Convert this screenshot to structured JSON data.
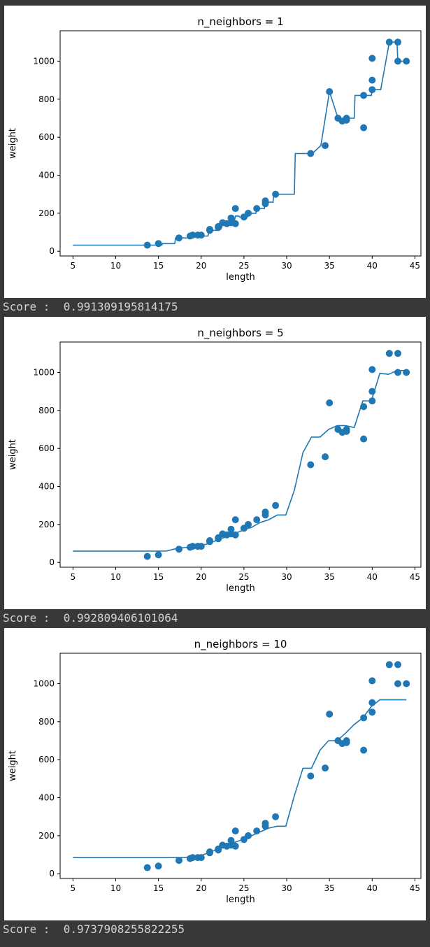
{
  "colors": {
    "page_bg": "#383838",
    "panel_bg": "#ffffff",
    "series": "#1f77b4",
    "axis": "#000000",
    "score_text": "#d4d4d4"
  },
  "scores": [
    {
      "prefix": "Score :",
      "value": "0.991309195814175"
    },
    {
      "prefix": "Score :",
      "value": "0.992809406101064"
    },
    {
      "prefix": "Score :",
      "value": "0.9737908255822255"
    }
  ],
  "chart_data": [
    {
      "type": "scatter",
      "title": "n_neighbors = 1",
      "xlabel": "length",
      "ylabel": "weight",
      "xlim": [
        3.5,
        45.7
      ],
      "ylim": [
        -25,
        1160
      ],
      "xticks": [
        5,
        10,
        15,
        20,
        25,
        30,
        35,
        40,
        45
      ],
      "yticks": [
        0,
        200,
        400,
        600,
        800,
        1000
      ],
      "scatter_points": [
        [
          13.7,
          32
        ],
        [
          15.0,
          40
        ],
        [
          17.4,
          70
        ],
        [
          18.7,
          80
        ],
        [
          19.0,
          85
        ],
        [
          19.6,
          85
        ],
        [
          20.0,
          85
        ],
        [
          21.0,
          110
        ],
        [
          21.0,
          115
        ],
        [
          22.0,
          125
        ],
        [
          22.0,
          130
        ],
        [
          22.5,
          150
        ],
        [
          23.0,
          145
        ],
        [
          23.5,
          150
        ],
        [
          23.5,
          175
        ],
        [
          24.0,
          225
        ],
        [
          24.0,
          145
        ],
        [
          25.0,
          180
        ],
        [
          25.5,
          200
        ],
        [
          26.5,
          225
        ],
        [
          27.5,
          250
        ],
        [
          27.5,
          265
        ],
        [
          28.7,
          300
        ],
        [
          32.8,
          514
        ],
        [
          34.5,
          556
        ],
        [
          35.0,
          840
        ],
        [
          36.0,
          700
        ],
        [
          36.5,
          685
        ],
        [
          37.0,
          700
        ],
        [
          37.0,
          690
        ],
        [
          39.0,
          650
        ],
        [
          39.0,
          820
        ],
        [
          40.0,
          850
        ],
        [
          40.0,
          900
        ],
        [
          40.0,
          1015
        ],
        [
          42.0,
          1100
        ],
        [
          43.0,
          1000
        ],
        [
          43.0,
          1100
        ],
        [
          44.0,
          1000
        ]
      ],
      "line": {
        "x": [
          5,
          13.9,
          14.0,
          15.4,
          15.5,
          16.9,
          17.0,
          18.5,
          18.6,
          20.8,
          20.9,
          21.9,
          22.0,
          22.4,
          22.5,
          22.9,
          23.0,
          23.4,
          23.5,
          23.9,
          24.0,
          24.4,
          24.5,
          25.4,
          25.5,
          26.4,
          26.5,
          27.4,
          27.5,
          28.4,
          28.5,
          30.0,
          30.9,
          31.0,
          32.9,
          33.0,
          34.0,
          35.0,
          36.0,
          36.5,
          37.0,
          37.9,
          38.0,
          38.9,
          39.0,
          39.9,
          40.0,
          41.0,
          42.0,
          42.9,
          43.0,
          44.0
        ],
        "y": [
          32,
          32,
          32,
          32,
          40,
          40,
          70,
          70,
          80,
          80,
          110,
          110,
          125,
          125,
          150,
          150,
          145,
          145,
          162,
          162,
          185,
          185,
          180,
          180,
          200,
          200,
          225,
          225,
          258,
          258,
          300,
          300,
          300,
          514,
          514,
          514,
          556,
          840,
          700,
          685,
          700,
          700,
          820,
          820,
          820,
          820,
          850,
          850,
          1100,
          1100,
          1000,
          1000
        ]
      }
    },
    {
      "type": "scatter",
      "title": "n_neighbors = 5",
      "xlabel": "length",
      "ylabel": "weight",
      "xlim": [
        3.5,
        45.7
      ],
      "ylim": [
        -25,
        1160
      ],
      "xticks": [
        5,
        10,
        15,
        20,
        25,
        30,
        35,
        40,
        45
      ],
      "yticks": [
        0,
        200,
        400,
        600,
        800,
        1000
      ],
      "scatter_points": [
        [
          13.7,
          32
        ],
        [
          15.0,
          40
        ],
        [
          17.4,
          70
        ],
        [
          18.7,
          80
        ],
        [
          19.0,
          85
        ],
        [
          19.6,
          85
        ],
        [
          20.0,
          85
        ],
        [
          21.0,
          110
        ],
        [
          21.0,
          115
        ],
        [
          22.0,
          125
        ],
        [
          22.0,
          130
        ],
        [
          22.5,
          150
        ],
        [
          23.0,
          145
        ],
        [
          23.5,
          150
        ],
        [
          23.5,
          175
        ],
        [
          24.0,
          225
        ],
        [
          24.0,
          145
        ],
        [
          25.0,
          180
        ],
        [
          25.5,
          200
        ],
        [
          26.5,
          225
        ],
        [
          27.5,
          250
        ],
        [
          27.5,
          265
        ],
        [
          28.7,
          300
        ],
        [
          32.8,
          514
        ],
        [
          34.5,
          556
        ],
        [
          35.0,
          840
        ],
        [
          36.0,
          700
        ],
        [
          36.5,
          685
        ],
        [
          37.0,
          700
        ],
        [
          37.0,
          690
        ],
        [
          39.0,
          650
        ],
        [
          39.0,
          820
        ],
        [
          40.0,
          850
        ],
        [
          40.0,
          900
        ],
        [
          40.0,
          1015
        ],
        [
          42.0,
          1100
        ],
        [
          43.0,
          1000
        ],
        [
          43.0,
          1100
        ],
        [
          44.0,
          1000
        ]
      ],
      "line": {
        "x": [
          5,
          15.9,
          16.8,
          17.9,
          18.9,
          19.9,
          20.9,
          21.9,
          22.9,
          23.9,
          24.9,
          25.9,
          26.9,
          27.9,
          28.9,
          29.9,
          30.9,
          31.9,
          32.9,
          33.9,
          34.9,
          35.9,
          36.9,
          37.9,
          38.9,
          39.9,
          40.9,
          41.9,
          42.9,
          43.9,
          44.0
        ],
        "y": [
          60,
          60,
          70,
          78,
          82,
          88,
          100,
          118,
          135,
          152,
          170,
          185,
          210,
          225,
          250,
          250,
          380,
          578,
          660,
          660,
          700,
          720,
          720,
          710,
          850,
          850,
          995,
          990,
          1010,
          1010,
          1010
        ]
      }
    },
    {
      "type": "scatter",
      "title": "n_neighbors = 10",
      "xlabel": "length",
      "ylabel": "weight",
      "xlim": [
        3.5,
        45.7
      ],
      "ylim": [
        -25,
        1160
      ],
      "xticks": [
        5,
        10,
        15,
        20,
        25,
        30,
        35,
        40,
        45
      ],
      "yticks": [
        0,
        200,
        400,
        600,
        800,
        1000
      ],
      "scatter_points": [
        [
          13.7,
          32
        ],
        [
          15.0,
          40
        ],
        [
          17.4,
          70
        ],
        [
          18.7,
          80
        ],
        [
          19.0,
          85
        ],
        [
          19.6,
          85
        ],
        [
          20.0,
          85
        ],
        [
          21.0,
          110
        ],
        [
          21.0,
          115
        ],
        [
          22.0,
          125
        ],
        [
          22.0,
          130
        ],
        [
          22.5,
          150
        ],
        [
          23.0,
          145
        ],
        [
          23.5,
          150
        ],
        [
          23.5,
          175
        ],
        [
          24.0,
          225
        ],
        [
          24.0,
          145
        ],
        [
          25.0,
          180
        ],
        [
          25.5,
          200
        ],
        [
          26.5,
          225
        ],
        [
          27.5,
          250
        ],
        [
          27.5,
          265
        ],
        [
          28.7,
          300
        ],
        [
          32.8,
          514
        ],
        [
          34.5,
          556
        ],
        [
          35.0,
          840
        ],
        [
          36.0,
          700
        ],
        [
          36.5,
          685
        ],
        [
          37.0,
          700
        ],
        [
          37.0,
          690
        ],
        [
          39.0,
          650
        ],
        [
          39.0,
          820
        ],
        [
          40.0,
          850
        ],
        [
          40.0,
          900
        ],
        [
          40.0,
          1015
        ],
        [
          42.0,
          1100
        ],
        [
          43.0,
          1000
        ],
        [
          43.0,
          1100
        ],
        [
          44.0,
          1000
        ]
      ],
      "line": {
        "x": [
          5,
          17.8,
          18.4,
          18.9,
          19.9,
          20.9,
          21.9,
          22.9,
          23.9,
          24.9,
          25.9,
          26.9,
          27.9,
          28.9,
          29.9,
          30.9,
          31.9,
          32.9,
          33.9,
          34.9,
          35.9,
          36.9,
          37.9,
          38.9,
          39.9,
          40.9,
          41.9,
          42.9,
          43.9,
          44.0
        ],
        "y": [
          85,
          85,
          87,
          90,
          95,
          110,
          130,
          148,
          165,
          180,
          200,
          220,
          240,
          250,
          250,
          410,
          555,
          555,
          650,
          700,
          700,
          740,
          785,
          820,
          880,
          915,
          915,
          915,
          915,
          915
        ]
      }
    }
  ]
}
